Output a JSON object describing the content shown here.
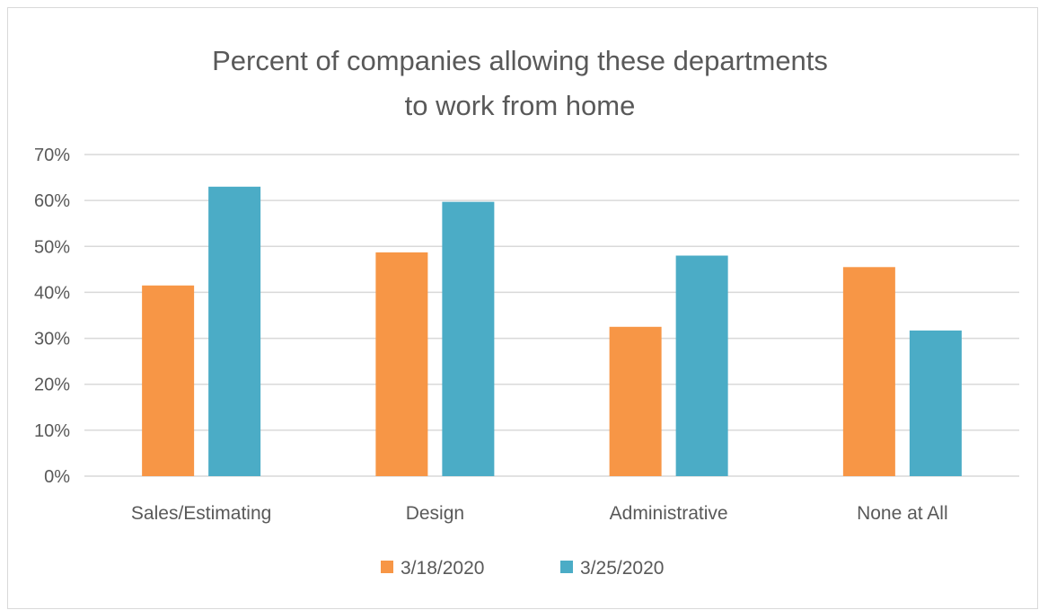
{
  "chart_data": {
    "type": "bar",
    "title": [
      "Percent of companies allowing these departments",
      "to work from home"
    ],
    "categories": [
      "Sales/Estimating",
      "Design",
      "Administrative",
      "None at All"
    ],
    "series": [
      {
        "name": "3/18/2020",
        "color": "#f79646",
        "values": [
          41.5,
          48.7,
          32.5,
          45.5
        ]
      },
      {
        "name": "3/25/2020",
        "color": "#4bacc6",
        "values": [
          63.0,
          59.7,
          48.0,
          31.7
        ]
      }
    ],
    "yticks": [
      "0%",
      "10%",
      "20%",
      "30%",
      "40%",
      "50%",
      "60%",
      "70%"
    ],
    "ylim": [
      0,
      70
    ],
    "grid": true,
    "legend_position": "bottom"
  }
}
